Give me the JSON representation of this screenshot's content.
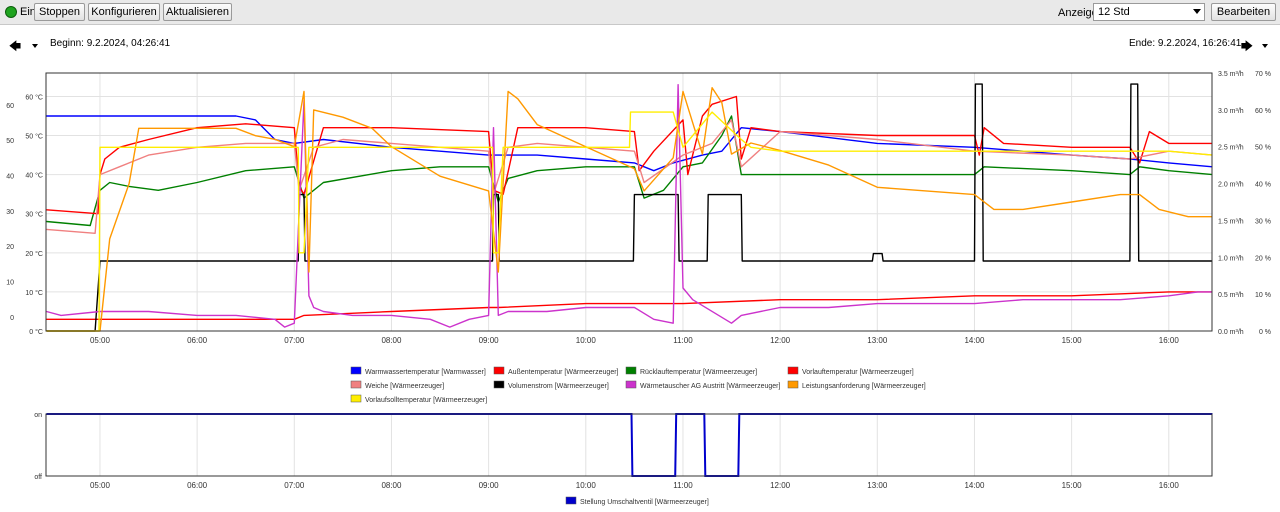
{
  "toolbar": {
    "status_label": "Ein",
    "status_color": "#1fa31f",
    "stop_label": "Stoppen",
    "configure_label": "Konfigurieren",
    "refresh_label": "Aktualisieren",
    "range_label": "Anzeige",
    "range_value": "12 Std",
    "edit_label": "Bearbeiten"
  },
  "navigation": {
    "begin_label": "Beginn: 9.2.2024, 04:26:41",
    "end_label": "Ende: 9.2.2024, 16:26:41",
    "back_icon": "arrow-left-icon",
    "forward_icon": "arrow-right-icon"
  },
  "chart_data": [
    {
      "type": "line",
      "x_ticks": [
        "05:00",
        "06:00",
        "07:00",
        "08:00",
        "09:00",
        "10:00",
        "11:00",
        "12:00",
        "13:00",
        "14:00",
        "15:00",
        "16:00"
      ],
      "xlim": [
        4.4447,
        16.4447
      ],
      "y_left_ticks_temp": [
        "0 °C",
        "10 °C",
        "20 °C",
        "30 °C",
        "40 °C",
        "50 °C",
        "60 °C"
      ],
      "ylim_temp": [
        0,
        66
      ],
      "y_left_ticks_num": [
        "0",
        "10",
        "20",
        "30",
        "40",
        "50",
        "60"
      ],
      "ylim_num": [
        -4,
        69
      ],
      "y_right_ticks_flow": [
        "0.0 m³/h",
        "0.5 m³/h",
        "1.0 m³/h",
        "1.5 m³/h",
        "2.0 m³/h",
        "2.5 m³/h",
        "3.0 m³/h",
        "3.5 m³/h"
      ],
      "ylim_flow": [
        0,
        3.5
      ],
      "y_right_ticks_pct": [
        "0 %",
        "10 %",
        "20 %",
        "30 %",
        "40 %",
        "50 %",
        "60 %",
        "70 %"
      ],
      "ylim_pct": [
        0,
        70
      ],
      "grid": true,
      "legend_position": "bottom",
      "series": [
        {
          "name": "Warmwassertemperatur [Warmwasser]",
          "color": "#0000ff",
          "axis": "temp",
          "x": [
            4.45,
            5.0,
            5.5,
            6.0,
            6.4,
            6.6,
            6.8,
            7.0,
            7.3,
            8.0,
            9.0,
            9.5,
            10.0,
            10.5,
            10.7,
            10.9,
            11.2,
            11.4,
            11.6,
            12.0,
            13.0,
            14.0,
            15.0,
            15.6,
            16.0,
            16.45
          ],
          "y": [
            55,
            55,
            55,
            55,
            55,
            54,
            49,
            48,
            49,
            47,
            45,
            45,
            44,
            43,
            41,
            43,
            45,
            46,
            52,
            51,
            48,
            47,
            45,
            44,
            43,
            42
          ]
        },
        {
          "name": "Außentemperatur [Wärmeerzeuger]",
          "color": "#ff0000",
          "axis": "temp",
          "x": [
            4.45,
            5.0,
            6.0,
            7.0,
            7.1,
            8.0,
            9.0,
            9.1,
            10.0,
            11.0,
            12.0,
            13.0,
            14.0,
            15.0,
            16.0,
            16.45
          ],
          "y": [
            3,
            3,
            3,
            3,
            4,
            5,
            6,
            6,
            7,
            7,
            8,
            8,
            9,
            9,
            10,
            10
          ]
        },
        {
          "name": "Rücklauftemperatur [Wärmeerzeuger]",
          "color": "#008000",
          "axis": "temp",
          "x": [
            4.45,
            4.9,
            5.0,
            5.1,
            5.3,
            5.6,
            6.0,
            6.5,
            7.0,
            7.1,
            7.3,
            8.0,
            8.5,
            9.0,
            9.1,
            9.2,
            9.5,
            10.0,
            10.5,
            10.6,
            10.8,
            11.0,
            11.2,
            11.4,
            11.5,
            11.6,
            12.0,
            13.0,
            14.0,
            14.1,
            15.0,
            15.6,
            15.7,
            16.0,
            16.45
          ],
          "y": [
            28,
            27,
            36,
            38,
            37,
            36,
            38,
            41,
            42,
            34,
            38,
            41,
            42,
            42,
            33,
            39,
            41,
            42,
            42,
            34,
            36,
            42,
            43,
            50,
            55,
            40,
            40,
            40,
            40,
            42,
            41,
            40,
            42,
            41,
            40
          ]
        },
        {
          "name": "Vorlauftemperatur [Wärmeerzeuger]",
          "color": "#ff0000",
          "axis": "temp",
          "x": [
            4.45,
            4.98,
            5.0,
            5.05,
            5.2,
            5.5,
            6.0,
            6.5,
            7.0,
            7.05,
            7.1,
            7.3,
            8.0,
            9.0,
            9.05,
            9.15,
            9.3,
            10.0,
            10.5,
            10.55,
            10.7,
            11.0,
            11.05,
            11.2,
            11.3,
            11.55,
            11.6,
            11.7,
            12.0,
            13.0,
            14.0,
            14.05,
            14.1,
            14.3,
            15.0,
            15.6,
            15.7,
            15.8,
            16.0,
            16.45
          ],
          "y": [
            31,
            30,
            40,
            44,
            47,
            49,
            52,
            53,
            52,
            37,
            35,
            52,
            52,
            51,
            36,
            35,
            52,
            52,
            51,
            41,
            46,
            54,
            40,
            55,
            58,
            60,
            44,
            52,
            51,
            50,
            50,
            45,
            52,
            48,
            47,
            47,
            43,
            51,
            48,
            48
          ]
        },
        {
          "name": "Weiche [Wärmeerzeuger]",
          "color": "#f08080",
          "axis": "temp",
          "x": [
            4.45,
            4.95,
            5.0,
            5.2,
            5.5,
            6.0,
            6.5,
            7.0,
            7.05,
            7.2,
            7.5,
            8.0,
            9.0,
            9.05,
            9.2,
            9.5,
            10.0,
            10.5,
            10.6,
            11.0,
            11.3,
            11.5,
            11.6,
            12.0,
            13.0,
            14.0,
            15.0,
            15.6,
            16.0,
            16.45
          ],
          "y": [
            26,
            25,
            40,
            42,
            45,
            47,
            48,
            48,
            36,
            47,
            49,
            48,
            46,
            35,
            47,
            48,
            47,
            46,
            38,
            45,
            48,
            54,
            42,
            51,
            49,
            46,
            45,
            44,
            46,
            45
          ]
        },
        {
          "name": "Volumenstrom [Wärmeerzeuger]",
          "color": "#000000",
          "axis": "flow",
          "x": [
            4.45,
            4.95,
            5.0,
            7.04,
            7.05,
            7.1,
            7.11,
            9.04,
            9.05,
            9.1,
            9.11,
            10.49,
            10.5,
            10.95,
            10.96,
            11.25,
            11.26,
            11.6,
            11.61,
            12.95,
            12.96,
            13.05,
            13.06,
            14.0,
            14.01,
            14.08,
            14.09,
            15.6,
            15.61,
            15.68,
            15.69,
            16.45
          ],
          "y": [
            0,
            0,
            0.95,
            0.95,
            1.85,
            1.85,
            0.95,
            0.95,
            1.85,
            1.85,
            0.95,
            0.95,
            1.85,
            1.85,
            0.95,
            0.95,
            1.85,
            1.85,
            0.95,
            0.95,
            1.05,
            1.05,
            0.95,
            0.95,
            3.35,
            3.35,
            0.95,
            0.95,
            3.35,
            3.35,
            0.95,
            0.95
          ]
        },
        {
          "name": "Wärmetauscher AG Austritt [Wärmeerzeuger]",
          "color": "#cc33cc",
          "axis": "temp",
          "x": [
            4.45,
            4.6,
            5.0,
            5.5,
            6.0,
            6.4,
            6.8,
            6.9,
            7.0,
            7.1,
            7.15,
            7.2,
            7.3,
            7.6,
            8.0,
            8.4,
            8.6,
            8.8,
            9.0,
            9.05,
            9.1,
            9.2,
            9.6,
            10.0,
            10.5,
            10.7,
            10.9,
            10.95,
            11.0,
            11.1,
            11.5,
            11.6,
            12.0,
            12.5,
            13.0,
            13.5,
            14.0,
            14.5,
            15.0,
            15.5,
            16.0,
            16.3,
            16.45
          ],
          "y": [
            5,
            4,
            5,
            5,
            4,
            4,
            3,
            1,
            2,
            59,
            9,
            6,
            5,
            4,
            4,
            3,
            1,
            3,
            4,
            52,
            4,
            5,
            5,
            6,
            6,
            3,
            2,
            63,
            11,
            8,
            2,
            4,
            6,
            6,
            7,
            7,
            7,
            8,
            8,
            8,
            9,
            10,
            10
          ]
        },
        {
          "name": "Leistungsanforderung [Wärmeerzeuger]",
          "color": "#ff9900",
          "axis": "pct",
          "x": [
            4.45,
            5.0,
            5.1,
            5.3,
            5.4,
            6.0,
            6.4,
            6.6,
            6.8,
            7.0,
            7.1,
            7.15,
            7.2,
            7.5,
            7.8,
            8.0,
            8.5,
            9.0,
            9.1,
            9.2,
            9.3,
            9.5,
            10.0,
            10.5,
            10.6,
            10.9,
            11.0,
            11.2,
            11.3,
            11.4,
            11.5,
            11.7,
            12.0,
            12.5,
            13.0,
            13.5,
            14.0,
            14.2,
            14.5,
            15.0,
            15.5,
            15.7,
            15.9,
            16.2,
            16.45
          ],
          "y": [
            0,
            0,
            25,
            40,
            55,
            55,
            55,
            53,
            52,
            50,
            65,
            16,
            60,
            58,
            55,
            50,
            42,
            38,
            16,
            65,
            63,
            56,
            50,
            44,
            38,
            47,
            65,
            48,
            66,
            62,
            48,
            51,
            49,
            45,
            39,
            38,
            37,
            33,
            33,
            35,
            37,
            37,
            33,
            31,
            31
          ]
        },
        {
          "name": "Vorlaufsolltemperatur [Wärmeerzeuger]",
          "color": "#ffee00",
          "axis": "temp",
          "x": [
            4.45,
            4.99,
            5.0,
            5.2,
            5.3,
            7.04,
            7.05,
            7.1,
            7.15,
            9.04,
            9.05,
            9.1,
            9.15,
            10.45,
            10.46,
            10.9,
            11.0,
            11.3,
            11.6,
            11.7,
            12.0,
            13.0,
            14.0,
            15.0,
            15.6,
            16.0,
            16.45
          ],
          "y": [
            0,
            0,
            47,
            47,
            47,
            47,
            20,
            20,
            47,
            47,
            20,
            20,
            47,
            47,
            56,
            56,
            47,
            56,
            49,
            47,
            46,
            46,
            46,
            46,
            46,
            46,
            45
          ]
        }
      ]
    },
    {
      "type": "line",
      "x_ticks": [
        "05:00",
        "06:00",
        "07:00",
        "08:00",
        "09:00",
        "10:00",
        "11:00",
        "12:00",
        "13:00",
        "14:00",
        "15:00",
        "16:00"
      ],
      "xlim": [
        4.4447,
        16.4447
      ],
      "y_ticks": [
        "on",
        "off"
      ],
      "ylim": [
        0,
        1
      ],
      "grid": true,
      "legend_position": "bottom",
      "series": [
        {
          "name": "Stellung Umschaltventil [Wärmeerzeuger]",
          "color": "#0000cc",
          "x": [
            4.45,
            10.47,
            10.48,
            10.92,
            10.93,
            11.22,
            11.23,
            11.57,
            11.58,
            16.45
          ],
          "y": [
            1,
            1,
            0,
            0,
            1,
            1,
            0,
            0,
            1,
            1
          ]
        }
      ]
    }
  ]
}
